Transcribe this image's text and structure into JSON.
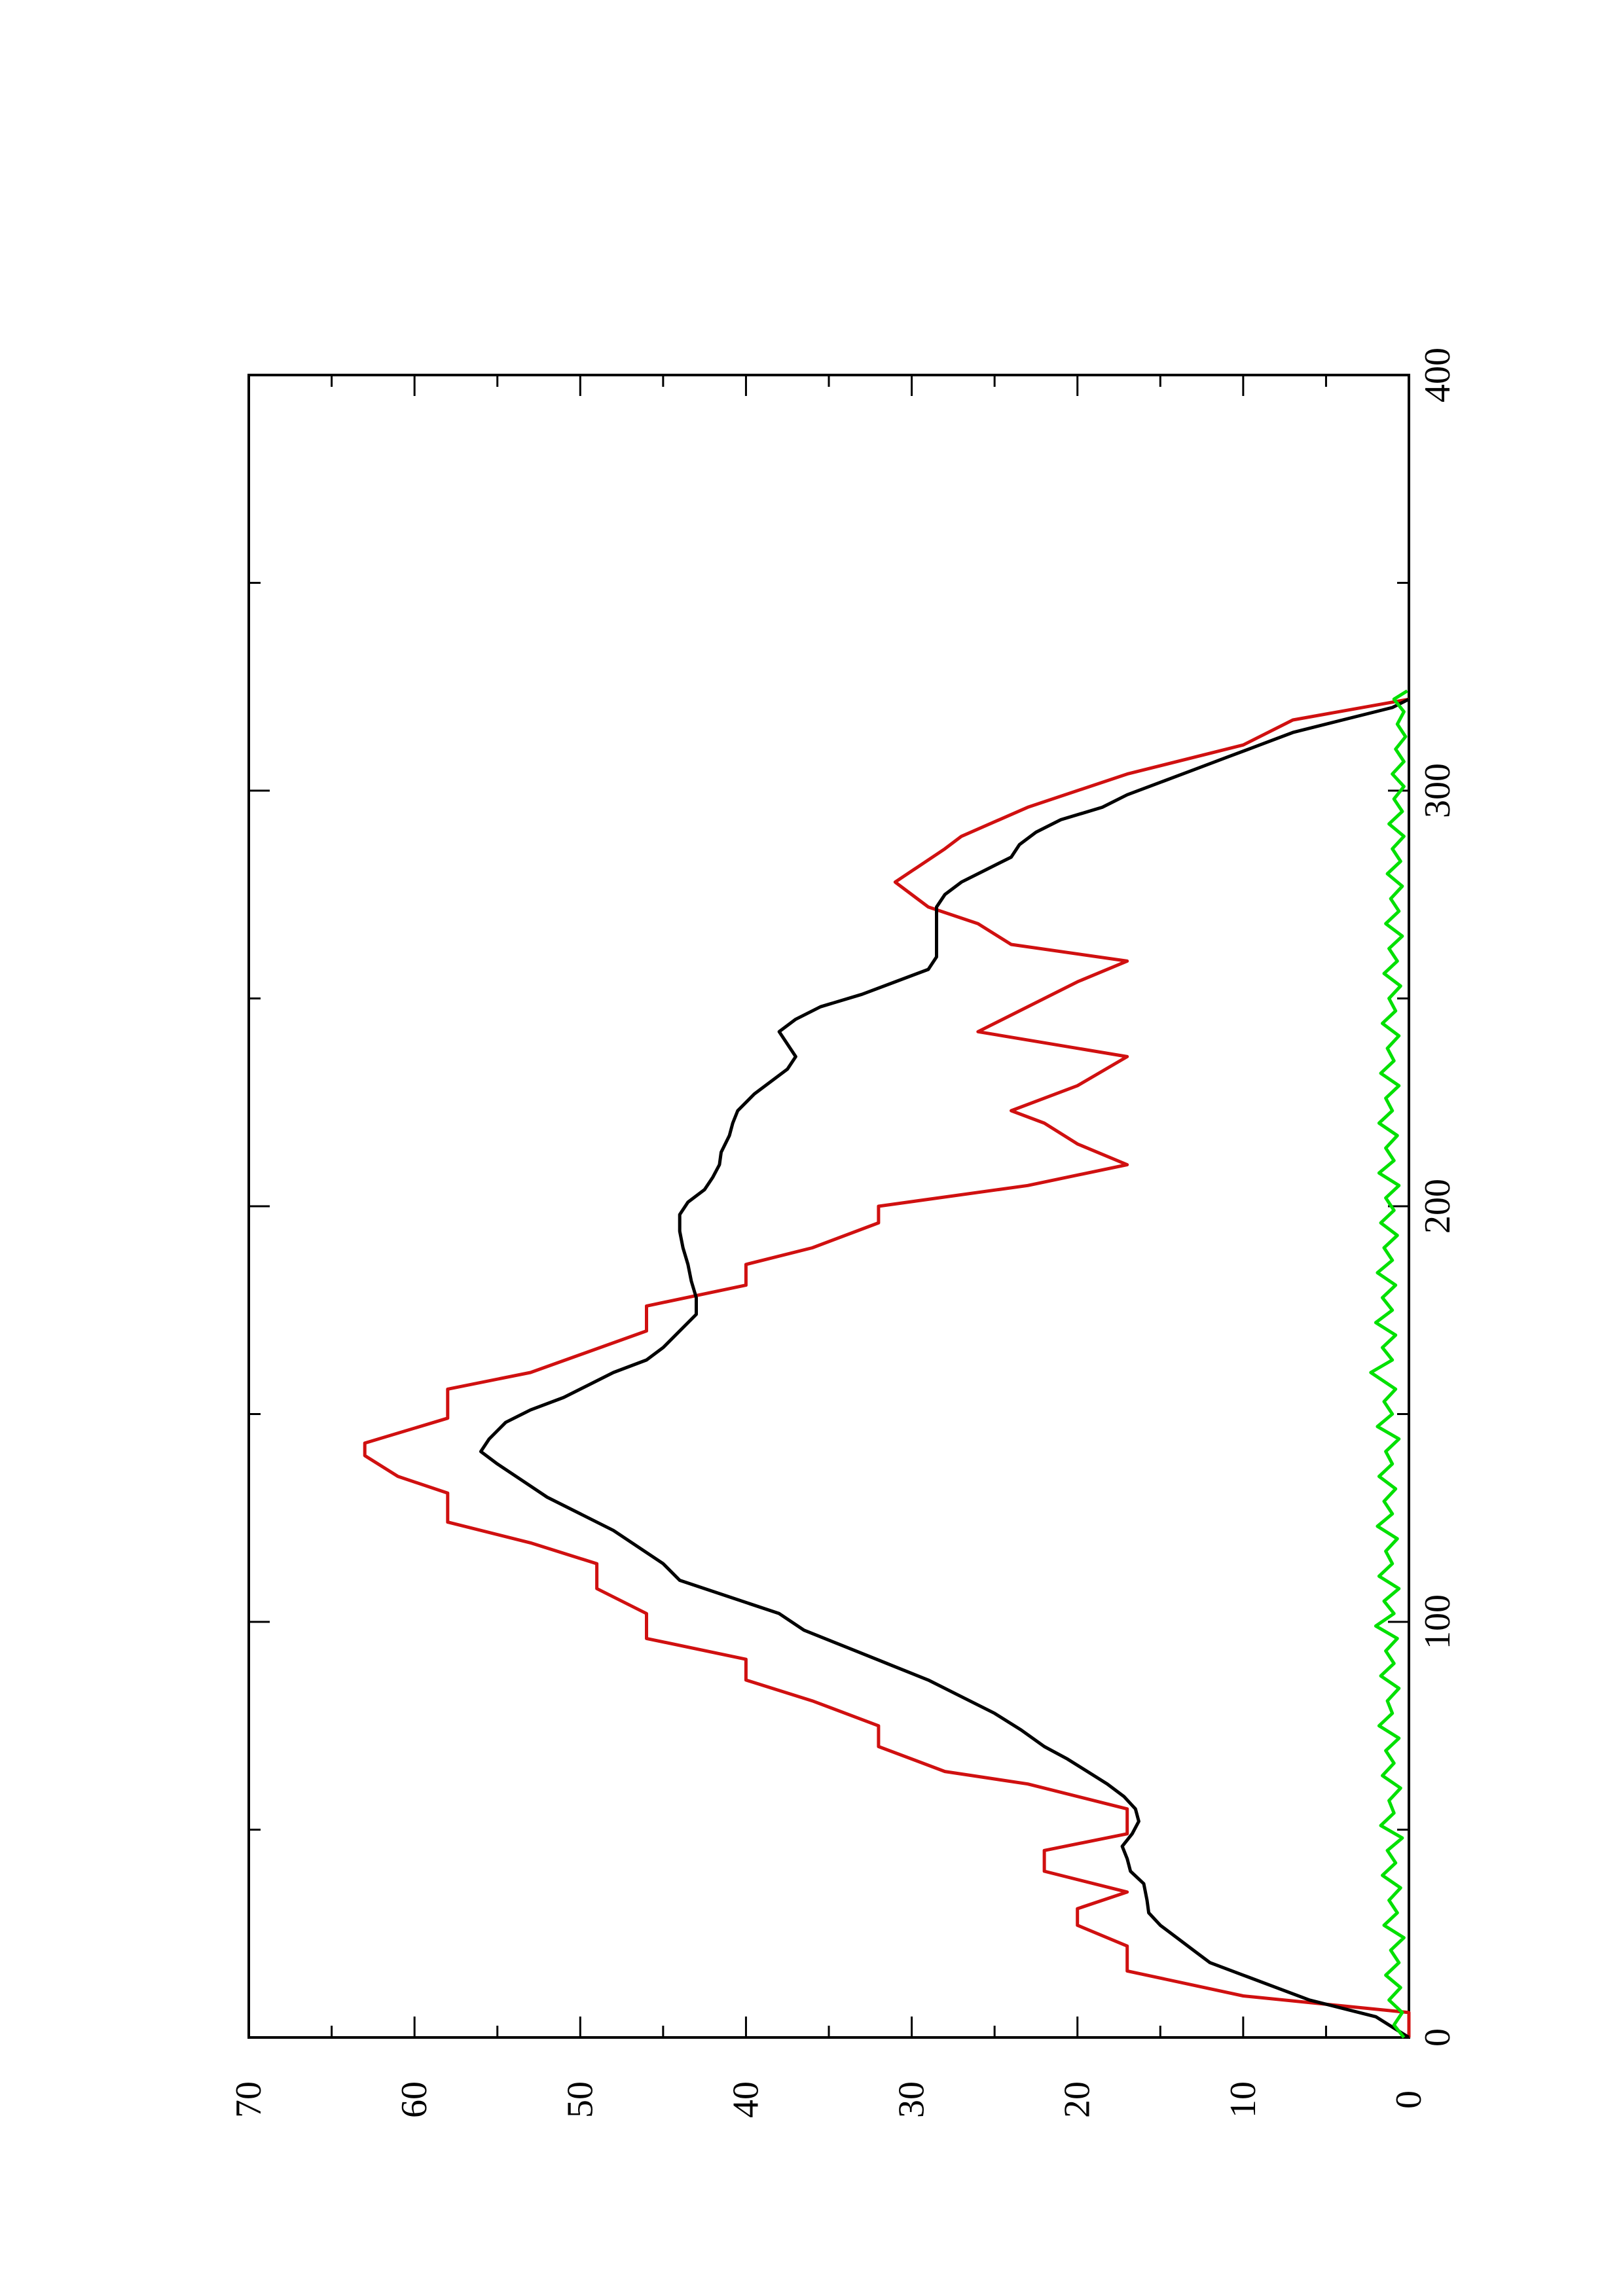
{
  "chart_data": {
    "type": "line",
    "orientation": "rotated-90-ccw",
    "title": "",
    "xlabel": "",
    "ylabel": "",
    "xlim": [
      0,
      400
    ],
    "ylim": [
      0,
      70
    ],
    "x_ticks": [
      0,
      100,
      200,
      300,
      400
    ],
    "x_minor_ticks": [
      50,
      150,
      250,
      350
    ],
    "y_ticks": [
      0,
      10,
      20,
      30,
      40,
      50,
      60,
      70
    ],
    "y_minor_ticks": [
      5,
      15,
      25,
      35,
      45,
      55,
      65
    ],
    "grid": false,
    "legend": "none",
    "series": [
      {
        "color": "#d01010",
        "step": true,
        "points": [
          [
            0,
            0
          ],
          [
            6,
            0
          ],
          [
            10,
            10
          ],
          [
            16,
            17
          ],
          [
            22,
            17
          ],
          [
            27,
            20
          ],
          [
            31,
            20
          ],
          [
            35,
            17
          ],
          [
            40,
            22
          ],
          [
            45,
            22
          ],
          [
            49,
            17
          ],
          [
            55,
            17
          ],
          [
            61,
            23
          ],
          [
            64,
            28
          ],
          [
            70,
            32
          ],
          [
            75,
            32
          ],
          [
            81,
            36
          ],
          [
            86,
            40
          ],
          [
            91,
            40
          ],
          [
            96,
            46
          ],
          [
            102,
            46
          ],
          [
            108,
            49
          ],
          [
            114,
            49
          ],
          [
            119,
            53
          ],
          [
            124,
            58
          ],
          [
            131,
            58
          ],
          [
            135,
            61
          ],
          [
            140,
            63
          ],
          [
            143,
            63
          ],
          [
            149,
            58
          ],
          [
            156,
            58
          ],
          [
            160,
            53
          ],
          [
            170,
            46
          ],
          [
            176,
            46
          ],
          [
            181,
            40
          ],
          [
            186,
            40
          ],
          [
            190,
            36
          ],
          [
            196,
            32
          ],
          [
            200,
            32
          ],
          [
            205,
            23
          ],
          [
            210,
            17
          ],
          [
            215,
            20
          ],
          [
            220,
            22
          ],
          [
            223,
            24
          ],
          [
            229,
            20
          ],
          [
            236,
            17
          ],
          [
            242,
            26
          ],
          [
            250,
            22
          ],
          [
            254,
            20
          ],
          [
            259,
            17
          ],
          [
            263,
            24
          ],
          [
            268,
            26
          ],
          [
            272,
            29
          ],
          [
            278,
            31
          ],
          [
            286,
            28
          ],
          [
            289,
            27
          ],
          [
            296,
            23
          ],
          [
            304,
            17
          ],
          [
            311,
            10
          ],
          [
            317,
            7
          ],
          [
            322,
            0
          ]
        ]
      },
      {
        "color": "#000000",
        "step": false,
        "points": [
          [
            0,
            0
          ],
          [
            5,
            2
          ],
          [
            9,
            6
          ],
          [
            12,
            8
          ],
          [
            15,
            10
          ],
          [
            18,
            12
          ],
          [
            21,
            13
          ],
          [
            24,
            14
          ],
          [
            27,
            15
          ],
          [
            30,
            15.7
          ],
          [
            33,
            15.8
          ],
          [
            37,
            16
          ],
          [
            40,
            16.8
          ],
          [
            43,
            17
          ],
          [
            46,
            17.3
          ],
          [
            49,
            16.7
          ],
          [
            52,
            16.3
          ],
          [
            55,
            16.5
          ],
          [
            58,
            17.2
          ],
          [
            61,
            18.2
          ],
          [
            64,
            19.4
          ],
          [
            67,
            20.6
          ],
          [
            70,
            22
          ],
          [
            74,
            23.4
          ],
          [
            78,
            25
          ],
          [
            82,
            27
          ],
          [
            86,
            29
          ],
          [
            90,
            31.5
          ],
          [
            94,
            34
          ],
          [
            98,
            36.5
          ],
          [
            102,
            38
          ],
          [
            106,
            41
          ],
          [
            110,
            44
          ],
          [
            114,
            45
          ],
          [
            118,
            46.5
          ],
          [
            122,
            48
          ],
          [
            126,
            50
          ],
          [
            130,
            52
          ],
          [
            134,
            53.5
          ],
          [
            138,
            55
          ],
          [
            141,
            56
          ],
          [
            144,
            55.5
          ],
          [
            148,
            54.5
          ],
          [
            151,
            53
          ],
          [
            154,
            51
          ],
          [
            157,
            49.5
          ],
          [
            160,
            48
          ],
          [
            163,
            46
          ],
          [
            166,
            45
          ],
          [
            170,
            44
          ],
          [
            174,
            43
          ],
          [
            178,
            43
          ],
          [
            182,
            43.3
          ],
          [
            186,
            43.5
          ],
          [
            190,
            43.8
          ],
          [
            194,
            44
          ],
          [
            198,
            44
          ],
          [
            201,
            43.5
          ],
          [
            204,
            42.5
          ],
          [
            207,
            42
          ],
          [
            210,
            41.6
          ],
          [
            213,
            41.5
          ],
          [
            217,
            41
          ],
          [
            220,
            40.8
          ],
          [
            223,
            40.5
          ],
          [
            227,
            39.5
          ],
          [
            230,
            38.5
          ],
          [
            233,
            37.5
          ],
          [
            236,
            37
          ],
          [
            239,
            37.5
          ],
          [
            242,
            38
          ],
          [
            245,
            37
          ],
          [
            248,
            35.5
          ],
          [
            251,
            33
          ],
          [
            254,
            31
          ],
          [
            257,
            29
          ],
          [
            260,
            28.5
          ],
          [
            263,
            28.5
          ],
          [
            266,
            28.5
          ],
          [
            269,
            28.5
          ],
          [
            272,
            28.5
          ],
          [
            275,
            28
          ],
          [
            278,
            27
          ],
          [
            281,
            25.5
          ],
          [
            284,
            24
          ],
          [
            287,
            23.5
          ],
          [
            290,
            22.5
          ],
          [
            293,
            21
          ],
          [
            296,
            18.5
          ],
          [
            299,
            17
          ],
          [
            302,
            15
          ],
          [
            305,
            13
          ],
          [
            308,
            11
          ],
          [
            311,
            9
          ],
          [
            314,
            7
          ],
          [
            317,
            4
          ],
          [
            320,
            1
          ],
          [
            322,
            0
          ]
        ]
      },
      {
        "color": "#00e000",
        "step": false,
        "points": [
          [
            0,
            0.3
          ],
          [
            3,
            0.9
          ],
          [
            6,
            0.4
          ],
          [
            9,
            1.2
          ],
          [
            12,
            0.5
          ],
          [
            15,
            1.4
          ],
          [
            18,
            0.6
          ],
          [
            21,
            1.1
          ],
          [
            24,
            0.3
          ],
          [
            27,
            1.5
          ],
          [
            30,
            0.7
          ],
          [
            33,
            1.2
          ],
          [
            36,
            0.5
          ],
          [
            39,
            1.6
          ],
          [
            42,
            0.8
          ],
          [
            45,
            1.3
          ],
          [
            48,
            0.4
          ],
          [
            51,
            1.7
          ],
          [
            54,
            0.9
          ],
          [
            57,
            1.2
          ],
          [
            60,
            0.5
          ],
          [
            63,
            1.6
          ],
          [
            66,
            0.9
          ],
          [
            69,
            1.4
          ],
          [
            72,
            0.6
          ],
          [
            75,
            1.8
          ],
          [
            78,
            1
          ],
          [
            81,
            1.3
          ],
          [
            84,
            0.6
          ],
          [
            87,
            1.7
          ],
          [
            90,
            0.9
          ],
          [
            93,
            1.4
          ],
          [
            96,
            0.7
          ],
          [
            99,
            2
          ],
          [
            102,
            0.9
          ],
          [
            105,
            1.5
          ],
          [
            108,
            0.6
          ],
          [
            111,
            1.8
          ],
          [
            114,
            1
          ],
          [
            117,
            1.4
          ],
          [
            120,
            0.7
          ],
          [
            123,
            1.9
          ],
          [
            126,
            1
          ],
          [
            129,
            1.5
          ],
          [
            132,
            0.8
          ],
          [
            135,
            1.8
          ],
          [
            138,
            1
          ],
          [
            141,
            1.4
          ],
          [
            144,
            0.6
          ],
          [
            147,
            1.9
          ],
          [
            150,
            1
          ],
          [
            153,
            1.5
          ],
          [
            156,
            0.8
          ],
          [
            160,
            2.3
          ],
          [
            163,
            1
          ],
          [
            166,
            1.6
          ],
          [
            169,
            0.8
          ],
          [
            172,
            2
          ],
          [
            175,
            1
          ],
          [
            178,
            1.6
          ],
          [
            181,
            0.8
          ],
          [
            184,
            1.9
          ],
          [
            187,
            1
          ],
          [
            190,
            1.5
          ],
          [
            193,
            0.7
          ],
          [
            196,
            1.7
          ],
          [
            199,
            0.9
          ],
          [
            202,
            1.4
          ],
          [
            205,
            0.6
          ],
          [
            208,
            1.8
          ],
          [
            211,
            0.9
          ],
          [
            214,
            1.4
          ],
          [
            217,
            0.7
          ],
          [
            220,
            1.8
          ],
          [
            223,
            1
          ],
          [
            226,
            1.4
          ],
          [
            229,
            0.6
          ],
          [
            232,
            1.7
          ],
          [
            235,
            0.9
          ],
          [
            238,
            1.3
          ],
          [
            241,
            0.6
          ],
          [
            244,
            1.6
          ],
          [
            247,
            0.8
          ],
          [
            250,
            1.2
          ],
          [
            253,
            0.5
          ],
          [
            256,
            1.5
          ],
          [
            259,
            0.7
          ],
          [
            262,
            1.2
          ],
          [
            265,
            0.4
          ],
          [
            268,
            1.4
          ],
          [
            271,
            0.6
          ],
          [
            274,
            1.1
          ],
          [
            277,
            0.4
          ],
          [
            280,
            1.3
          ],
          [
            283,
            0.5
          ],
          [
            286,
            1
          ],
          [
            289,
            0.3
          ],
          [
            292,
            1.2
          ],
          [
            295,
            0.4
          ],
          [
            298,
            0.9
          ],
          [
            301,
            0.3
          ],
          [
            304,
            1
          ],
          [
            307,
            0.3
          ],
          [
            310,
            0.8
          ],
          [
            313,
            0.2
          ],
          [
            316,
            0.7
          ],
          [
            319,
            0.3
          ],
          [
            322,
            0.9
          ],
          [
            324,
            0.1
          ]
        ]
      }
    ]
  }
}
